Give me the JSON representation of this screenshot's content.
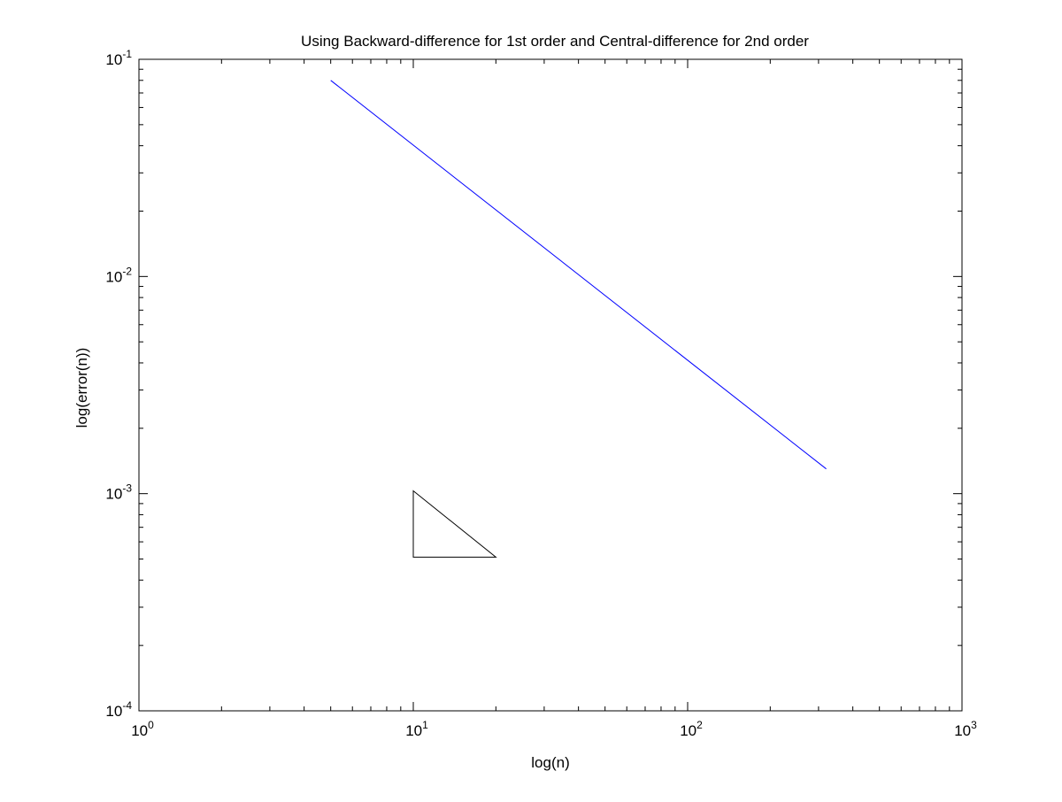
{
  "chart_data": {
    "type": "line",
    "title": "Using Backward-difference for 1st order and Central-difference for 2nd order",
    "xlabel": "log(n)",
    "ylabel": "log(error(n))",
    "x_scale": "log",
    "y_scale": "log",
    "xlim": [
      1,
      1000
    ],
    "ylim": [
      0.0001,
      0.1
    ],
    "grid": false,
    "legend": "none",
    "x_ticks": [
      {
        "value": 1,
        "base": "10",
        "exp": "0"
      },
      {
        "value": 10,
        "base": "10",
        "exp": "1"
      },
      {
        "value": 100,
        "base": "10",
        "exp": "2"
      },
      {
        "value": 1000,
        "base": "10",
        "exp": "3"
      }
    ],
    "y_ticks": [
      {
        "value": 0.0001,
        "base": "10",
        "exp": "-4"
      },
      {
        "value": 0.001,
        "base": "10",
        "exp": "-3"
      },
      {
        "value": 0.01,
        "base": "10",
        "exp": "-2"
      },
      {
        "value": 0.1,
        "base": "10",
        "exp": "-1"
      }
    ],
    "series": [
      {
        "color": "#0000ff",
        "x": [
          5,
          320
        ],
        "y": [
          0.08,
          0.0013
        ]
      }
    ],
    "annotations": [
      {
        "type": "slope-triangle",
        "color": "#000000",
        "vertices": [
          [
            10,
            0.00103
          ],
          [
            10,
            0.00051
          ],
          [
            20,
            0.00051
          ]
        ]
      }
    ]
  }
}
